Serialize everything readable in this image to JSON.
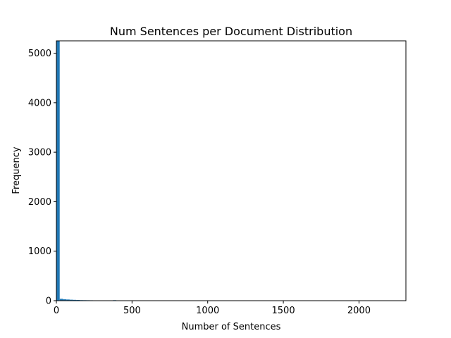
{
  "chart_data": {
    "type": "bar",
    "title": "Num Sentences per Document Distribution",
    "xlabel": "Number of Sentences",
    "ylabel": "Frequency",
    "xlim": [
      0,
      2310
    ],
    "ylim": [
      0,
      5250
    ],
    "xticks": [
      0,
      500,
      1000,
      1500,
      2000
    ],
    "yticks": [
      0,
      1000,
      2000,
      3000,
      4000,
      5000
    ],
    "bar_color": "#1f77b4",
    "bins": [
      {
        "x0": 0,
        "x1": 22,
        "count": 5250
      },
      {
        "x0": 22,
        "x1": 44,
        "count": 38
      },
      {
        "x0": 44,
        "x1": 66,
        "count": 28
      },
      {
        "x0": 66,
        "x1": 88,
        "count": 24
      },
      {
        "x0": 88,
        "x1": 110,
        "count": 20
      },
      {
        "x0": 110,
        "x1": 132,
        "count": 17
      },
      {
        "x0": 132,
        "x1": 154,
        "count": 14
      },
      {
        "x0": 154,
        "x1": 176,
        "count": 11
      },
      {
        "x0": 176,
        "x1": 198,
        "count": 10
      },
      {
        "x0": 198,
        "x1": 220,
        "count": 9
      },
      {
        "x0": 220,
        "x1": 242,
        "count": 8
      },
      {
        "x0": 242,
        "x1": 264,
        "count": 7
      },
      {
        "x0": 264,
        "x1": 286,
        "count": 6
      },
      {
        "x0": 286,
        "x1": 308,
        "count": 5
      },
      {
        "x0": 308,
        "x1": 330,
        "count": 4
      },
      {
        "x0": 330,
        "x1": 352,
        "count": 2
      },
      {
        "x0": 352,
        "x1": 374,
        "count": 2
      },
      {
        "x0": 374,
        "x1": 396,
        "count": 10
      },
      {
        "x0": 396,
        "x1": 418,
        "count": 2
      },
      {
        "x0": 418,
        "x1": 440,
        "count": 1
      },
      {
        "x0": 2178,
        "x1": 2200,
        "count": 1
      }
    ]
  }
}
